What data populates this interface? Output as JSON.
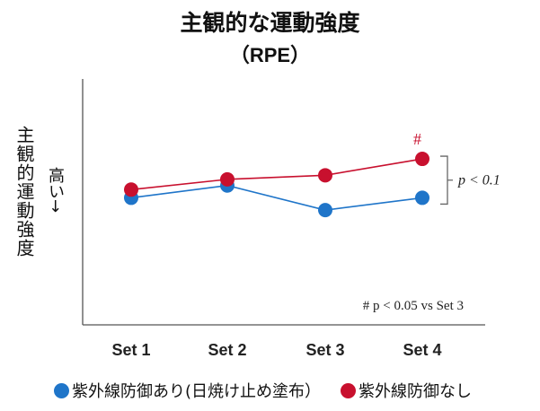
{
  "title": "主観的な運動強度",
  "subtitle": "（RPE）",
  "ylabel": "主観的運動強度",
  "ylabel_sub": "高い→",
  "colors": {
    "blue": "#1f75c9",
    "red": "#c8102e",
    "axis": "#555555",
    "bracket": "#666666"
  },
  "annotations": {
    "hash": "#",
    "bracket_label": "p < 0.1",
    "footnote": "# p < 0.05 vs Set 3"
  },
  "legend": [
    {
      "label": "紫外線防御あり(日焼け止め塗布）",
      "color": "#1f75c9"
    },
    {
      "label": "紫外線防御なし",
      "color": "#c8102e"
    }
  ],
  "chart_data": {
    "type": "line",
    "categories": [
      "Set 1",
      "Set 2",
      "Set 3",
      "Set 4"
    ],
    "series": [
      {
        "name": "紫外線防御あり(日焼け止め塗布）",
        "color": "#1f75c9",
        "values": [
          6.2,
          6.8,
          5.6,
          6.2
        ]
      },
      {
        "name": "紫外線防御なし",
        "color": "#c8102e",
        "values": [
          6.6,
          7.1,
          7.3,
          8.1
        ]
      }
    ],
    "ylim": [
      0,
      12
    ],
    "grid": false,
    "legend_position": "bottom"
  }
}
